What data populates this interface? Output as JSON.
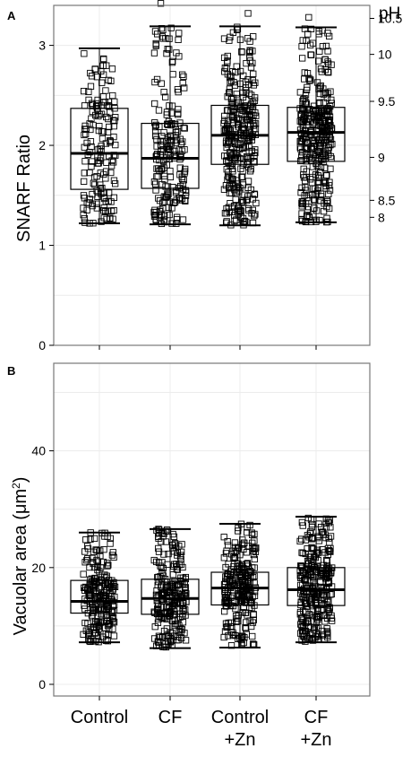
{
  "chart_data": [
    {
      "panel_label": "A",
      "type": "box",
      "ylabel": "SNARF Ratio",
      "ylim": [
        0,
        3.4
      ],
      "y_ticks": [
        0,
        1,
        2,
        3
      ],
      "secondary_axis": {
        "label": "pH",
        "ticks": [
          {
            "label": "8",
            "ratio": 1.28
          },
          {
            "label": "8.5",
            "ratio": 1.45
          },
          {
            "label": "9",
            "ratio": 1.88
          },
          {
            "label": "9.5",
            "ratio": 2.44
          },
          {
            "label": "10",
            "ratio": 2.91
          },
          {
            "label": "10.5",
            "ratio": 3.27
          }
        ]
      },
      "categories": [
        "Control",
        "CF",
        "Control +Zn",
        "CF +Zn"
      ],
      "boxes": [
        {
          "category": "Control",
          "min": 1.22,
          "q1": 1.56,
          "median": 1.92,
          "q3": 2.37,
          "max": 2.97,
          "outliers": [],
          "n": 160
        },
        {
          "category": "CF",
          "min": 1.21,
          "q1": 1.57,
          "median": 1.87,
          "q3": 2.22,
          "max": 3.19,
          "outliers": [
            3.42
          ],
          "n": 200
        },
        {
          "category": "Control +Zn",
          "min": 1.2,
          "q1": 1.81,
          "median": 2.1,
          "q3": 2.4,
          "max": 3.19,
          "outliers": [
            3.32
          ],
          "n": 320
        },
        {
          "category": "CF +Zn",
          "min": 1.23,
          "q1": 1.84,
          "median": 2.13,
          "q3": 2.38,
          "max": 3.18,
          "outliers": [
            3.28
          ],
          "n": 340
        }
      ],
      "grid": true
    },
    {
      "panel_label": "B",
      "type": "box",
      "ylabel": "Vacuolar area (μm²)",
      "ylabel_parts": [
        "Vacuolar area (μm",
        "2",
        ")"
      ],
      "ylim": [
        -2,
        55
      ],
      "y_ticks": [
        0,
        20,
        40
      ],
      "categories": [
        "Control",
        "CF",
        "Control +Zn",
        "CF +Zn"
      ],
      "category_lines": [
        [
          "Control"
        ],
        [
          "CF"
        ],
        [
          "Control",
          "+Zn"
        ],
        [
          "CF",
          "+Zn"
        ]
      ],
      "boxes": [
        {
          "category": "Control",
          "min": 7.2,
          "q1": 12.2,
          "median": 14.2,
          "q3": 17.8,
          "max": 26.0,
          "outliers": [],
          "n": 220
        },
        {
          "category": "CF",
          "min": 6.2,
          "q1": 12.0,
          "median": 14.7,
          "q3": 18.0,
          "max": 26.6,
          "outliers": [],
          "n": 240
        },
        {
          "category": "Control +Zn",
          "min": 6.3,
          "q1": 13.6,
          "median": 16.5,
          "q3": 19.2,
          "max": 27.5,
          "outliers": [],
          "n": 260
        },
        {
          "category": "CF +Zn",
          "min": 7.2,
          "q1": 13.5,
          "median": 16.2,
          "q3": 20.0,
          "max": 28.7,
          "outliers": [],
          "n": 300
        }
      ],
      "grid": true
    }
  ]
}
